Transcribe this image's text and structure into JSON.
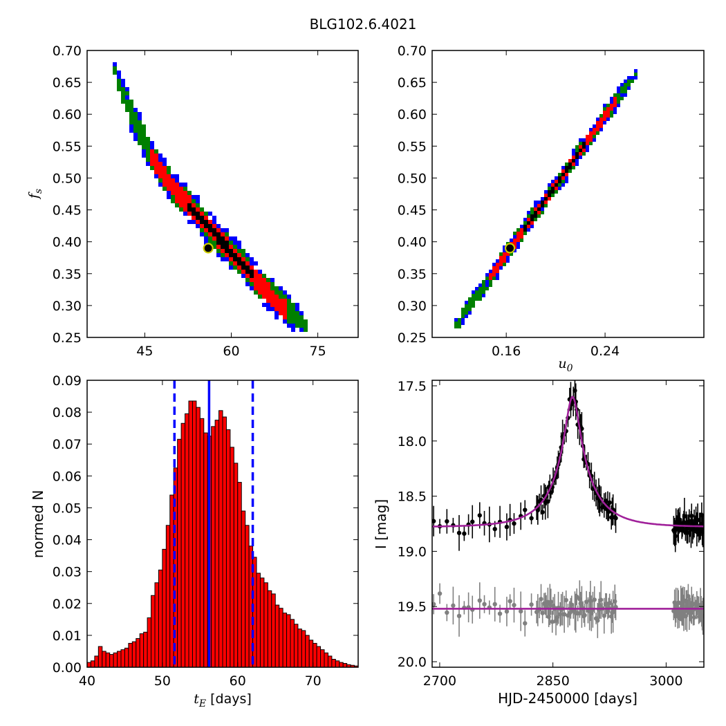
{
  "title": "BLG102.6.4021",
  "chart_data": [
    {
      "type": "heatmap",
      "id": "fs_vs_tE",
      "xlabel": "",
      "ylabel": "f_s",
      "xlim": [
        35,
        82
      ],
      "ylim": [
        0.25,
        0.7
      ],
      "xticks": [
        45,
        60,
        75
      ],
      "yticks": [
        0.25,
        0.3,
        0.35,
        0.4,
        0.45,
        0.5,
        0.55,
        0.6,
        0.65,
        0.7
      ],
      "colors": {
        "3sigma": "#0000ff",
        "2sigma": "#008000",
        "1sigma": "#ff0000",
        "best_chain": "#000000",
        "best_fit_marker": "#cccc00"
      },
      "ridge": {
        "x": [
          39.5,
          41,
          44,
          46,
          49,
          52,
          55,
          57,
          60,
          62,
          65,
          68,
          71,
          72.5
        ],
        "y": [
          0.665,
          0.63,
          0.57,
          0.53,
          0.49,
          0.46,
          0.43,
          0.41,
          0.38,
          0.36,
          0.33,
          0.3,
          0.28,
          0.27
        ]
      },
      "best_fit": {
        "x": 56,
        "y": 0.39
      }
    },
    {
      "type": "heatmap",
      "id": "fs_vs_u0",
      "xlabel": "u_0",
      "ylabel": "",
      "xlim": [
        0.1,
        0.32
      ],
      "ylim": [
        0.25,
        0.7
      ],
      "xticks": [
        0.16,
        0.24
      ],
      "yticks": [
        0.25,
        0.3,
        0.35,
        0.4,
        0.45,
        0.5,
        0.55,
        0.6,
        0.65,
        0.7
      ],
      "colors": {
        "3sigma": "#0000ff",
        "2sigma": "#008000",
        "1sigma": "#ff0000",
        "best_chain": "#000000",
        "best_fit_marker": "#cccc00"
      },
      "ridge": {
        "x": [
          0.118,
          0.262
        ],
        "y": [
          0.27,
          0.66
        ]
      },
      "best_fit": {
        "x": 0.163,
        "y": 0.39
      }
    },
    {
      "type": "bar",
      "id": "tE_histogram",
      "xlabel": "t_E [days]",
      "ylabel": "normed N",
      "xlim": [
        40,
        76
      ],
      "ylim": [
        0,
        0.09
      ],
      "xticks": [
        40,
        50,
        60,
        70
      ],
      "yticks": [
        0.0,
        0.01,
        0.02,
        0.03,
        0.04,
        0.05,
        0.06,
        0.07,
        0.08,
        0.09
      ],
      "bin_start": 40.0,
      "bin_width": 0.5,
      "values": [
        0.0015,
        0.002,
        0.0035,
        0.0065,
        0.005,
        0.0045,
        0.004,
        0.0045,
        0.005,
        0.0055,
        0.006,
        0.0075,
        0.008,
        0.009,
        0.0105,
        0.011,
        0.0155,
        0.0225,
        0.0265,
        0.0305,
        0.037,
        0.0445,
        0.054,
        0.0625,
        0.0715,
        0.0765,
        0.0795,
        0.0835,
        0.0835,
        0.0815,
        0.078,
        0.0735,
        0.0725,
        0.0755,
        0.0775,
        0.0805,
        0.0785,
        0.0745,
        0.069,
        0.064,
        0.058,
        0.049,
        0.0445,
        0.038,
        0.0345,
        0.0295,
        0.028,
        0.0265,
        0.024,
        0.023,
        0.0195,
        0.0185,
        0.017,
        0.0165,
        0.015,
        0.0135,
        0.012,
        0.0115,
        0.01,
        0.0085,
        0.0075,
        0.0065,
        0.0055,
        0.0045,
        0.0035,
        0.0025,
        0.002,
        0.0015,
        0.0012,
        0.0008,
        0.0006,
        0.0004
      ],
      "bar_color": "#ff0000",
      "median": 56.2,
      "interval": [
        51.6,
        62.0
      ],
      "line_color": "#0000ff"
    },
    {
      "type": "scatter",
      "id": "light_curve",
      "xlabel": "HJD-2450000 [days]",
      "ylabel": "I [mag]",
      "xlim": [
        2690,
        3050
      ],
      "ylim": [
        20.05,
        17.45
      ],
      "xticks": [
        2700,
        2850,
        3000
      ],
      "yticks": [
        17.5,
        18.0,
        18.5,
        19.0,
        19.5,
        20.0
      ],
      "series": [
        {
          "color": "#000000",
          "baseline_mag": 18.78,
          "peak_mag": 17.6,
          "peak_t": 2876,
          "tE": 56.2,
          "u0": 0.163
        },
        {
          "color": "#808080",
          "baseline_mag": 19.52
        }
      ],
      "model_color": "#a0209a"
    }
  ]
}
